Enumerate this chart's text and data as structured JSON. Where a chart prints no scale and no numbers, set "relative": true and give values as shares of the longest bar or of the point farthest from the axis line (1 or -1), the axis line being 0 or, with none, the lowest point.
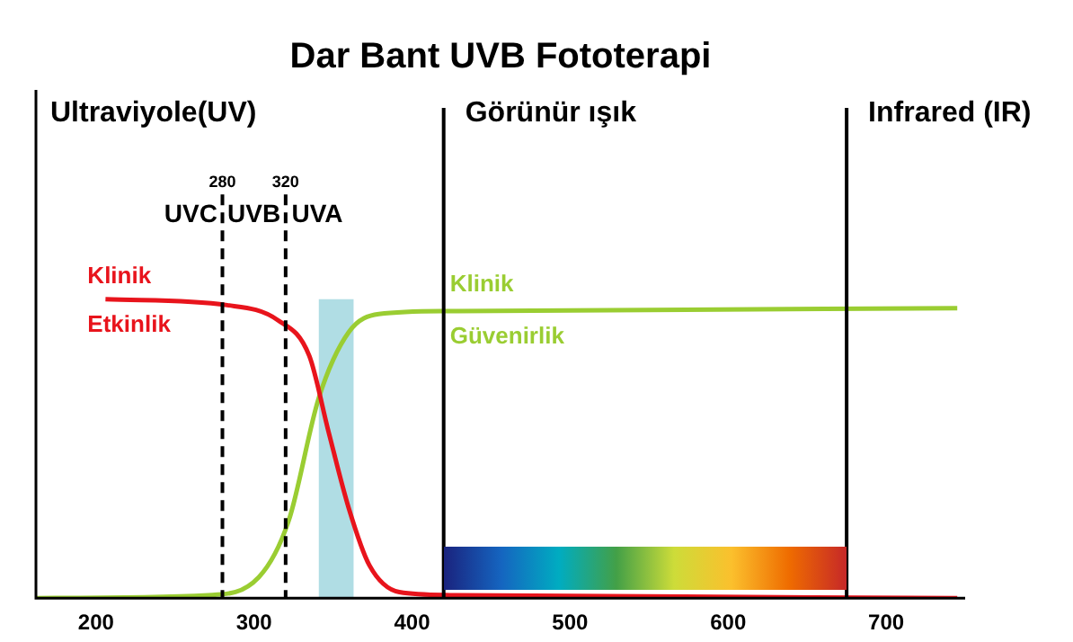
{
  "chart_data": {
    "type": "line",
    "title": "Dar Bant UVB Fototerapi",
    "relative": true,
    "xlim": [
      162,
      750
    ],
    "xticks": [
      200,
      300,
      400,
      500,
      600,
      700
    ],
    "series": [
      {
        "name": "Klinik Etkinlik",
        "color": "#e8141c",
        "x": [
          206,
          283,
          315,
          335,
          347,
          360,
          373,
          392,
          424,
          745
        ],
        "values": [
          1,
          0.98,
          0.93,
          0.81,
          0.56,
          0.3,
          0.11,
          0.02,
          0.01,
          0
        ]
      },
      {
        "name": "Klinik Güvenirlik",
        "color": "#9acd32",
        "x": [
          162,
          271,
          303,
          322,
          341,
          360,
          379,
          424,
          745
        ],
        "values": [
          0,
          0.01,
          0.07,
          0.26,
          0.67,
          0.89,
          0.95,
          0.96,
          0.97
        ]
      }
    ],
    "ref_lines": [
      {
        "axis": "x",
        "value": 280,
        "label": "280",
        "line_style": "dashed",
        "color": "#000000"
      },
      {
        "axis": "x",
        "value": 320,
        "label": "320",
        "line_style": "dashed",
        "color": "#000000"
      },
      {
        "axis": "x",
        "value": 420,
        "label": "Görünür ışık",
        "color": "#000000"
      },
      {
        "axis": "x",
        "value": 675,
        "label": "Infrared (IR)",
        "color": "#000000"
      }
    ],
    "bands": [
      {
        "axis": "x",
        "from": 341,
        "to": 363,
        "color": "#b0dde4"
      }
    ],
    "annotations": [
      "Ultraviyole(UV)",
      "UVC",
      "UVB",
      "UVA"
    ],
    "grid": false,
    "legend": false,
    "marker": "none",
    "line_style": "solid"
  }
}
